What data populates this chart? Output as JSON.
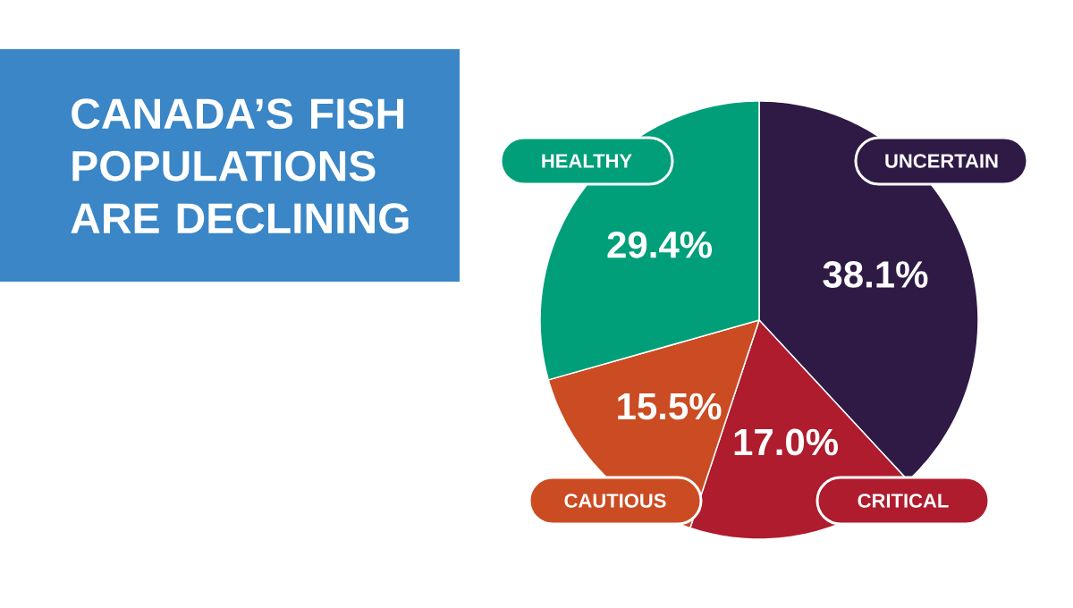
{
  "chart_data": {
    "type": "pie",
    "title": "CANADA’S FISH POPULATIONS ARE DECLINING",
    "categories": [
      "UNCERTAIN",
      "CRITICAL",
      "CAUTIOUS",
      "HEALTHY"
    ],
    "values": [
      38.1,
      17.0,
      15.5,
      29.4
    ],
    "colors": [
      "#2e1a45",
      "#ae1c2e",
      "#cb4b22",
      "#009f7a"
    ],
    "value_labels": [
      "38.1%",
      "17.0%",
      "15.5%",
      "29.4%"
    ]
  }
}
